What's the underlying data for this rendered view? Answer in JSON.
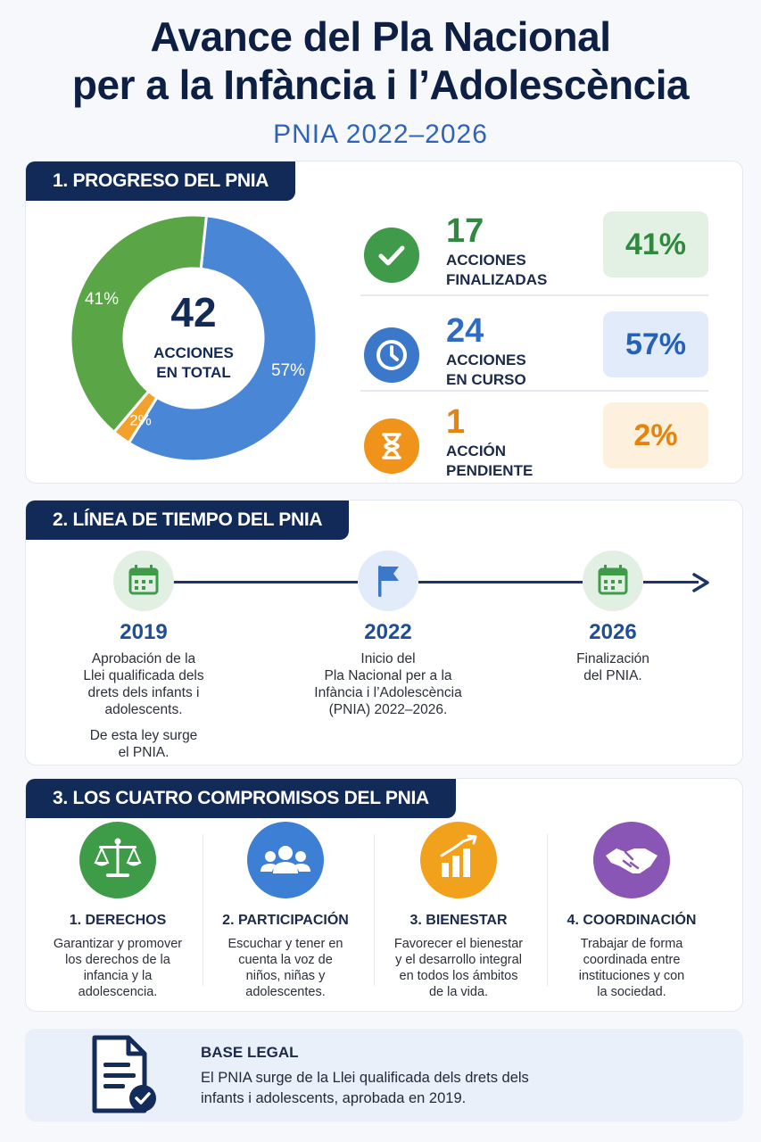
{
  "header": {
    "title_line1": "Avance del Pla Nacional",
    "title_line2": "per a la Infància i l’Adolescència",
    "subtitle": "PNIA 2022–2026"
  },
  "progress": {
    "section_label": "1. PROGRESO DEL PNIA",
    "total_number": "42",
    "total_label_line1": "ACCIONES",
    "total_label_line2": "EN TOTAL",
    "stats": [
      {
        "number": "17",
        "label_line1": "ACCIONES",
        "label_line2": "FINALIZADAS",
        "percent": "41%",
        "color": "#3f9a4a",
        "bg": "#e3f1e4",
        "icon": "check-icon"
      },
      {
        "number": "24",
        "label_line1": "ACCIONES",
        "label_line2": "EN CURSO",
        "percent": "57%",
        "color": "#3b78c9",
        "bg": "#e1ebf9",
        "icon": "clock-icon"
      },
      {
        "number": "1",
        "label_line1": "ACCIÓN",
        "label_line2": "PENDIENTE",
        "percent": "2%",
        "color": "#f0931a",
        "bg": "#fdf0dc",
        "icon": "hourglass-icon"
      }
    ]
  },
  "chart_data": {
    "type": "pie",
    "categories": [
      "Acciones finalizadas",
      "Acciones en curso",
      "Acción pendiente"
    ],
    "values": [
      17,
      24,
      1
    ],
    "labels": [
      "41%",
      "57%",
      "2%"
    ],
    "colors": [
      "#5aa646",
      "#4a86d6",
      "#f2a12c"
    ]
  },
  "timeline": {
    "section_label": "2. LÍNEA DE TIEMPO DEL PNIA",
    "events": [
      {
        "year": "2019",
        "text_lines": [
          "Aprobación de la",
          "Llei qualificada dels",
          "drets dels infants i",
          "adolescents."
        ],
        "note_lines": [
          "De esta ley surge",
          "el PNIA."
        ],
        "icon": "calendar-icon"
      },
      {
        "year": "2022",
        "text_lines": [
          "Inicio del",
          "Pla Nacional per a la",
          "Infància i l’Adolescència",
          "(PNIA) 2022–2026."
        ],
        "note_lines": [],
        "icon": "flag-icon"
      },
      {
        "year": "2026",
        "text_lines": [
          "Finalización",
          "del PNIA."
        ],
        "note_lines": [],
        "icon": "calendar-icon"
      }
    ]
  },
  "commitments": {
    "section_label": "3. LOS CUATRO COMPROMISOS DEL PNIA",
    "items": [
      {
        "title": "1. DERECHOS",
        "desc_lines": [
          "Garantizar y promover",
          "los derechos de la",
          "infancia y la",
          "adolescencia."
        ],
        "color": "#3e9c48",
        "icon": "scales-icon"
      },
      {
        "title": "2. PARTICIPACIÓN",
        "desc_lines": [
          "Escuchar y tener en",
          "cuenta la voz de",
          "niños, niñas y",
          "adolescentes."
        ],
        "color": "#3d7fd4",
        "icon": "people-icon"
      },
      {
        "title": "3. BIENESTAR",
        "desc_lines": [
          "Favorecer el bienestar",
          "y el desarrollo integral",
          "en todos los ámbitos",
          "de la vida."
        ],
        "color": "#f2a11d",
        "icon": "bar-chart-icon"
      },
      {
        "title": "4. COORDINACIÓN",
        "desc_lines": [
          "Trabajar de forma",
          "coordinada entre",
          "instituciones y con",
          "la sociedad."
        ],
        "color": "#8a56b5",
        "icon": "handshake-icon"
      }
    ]
  },
  "legal": {
    "title": "BASE LEGAL",
    "text_line1": "El PNIA surge de la Llei qualificada dels drets dels",
    "text_line2": "infants i adolescents, aprobada en 2019.",
    "icon": "document-check-icon"
  }
}
